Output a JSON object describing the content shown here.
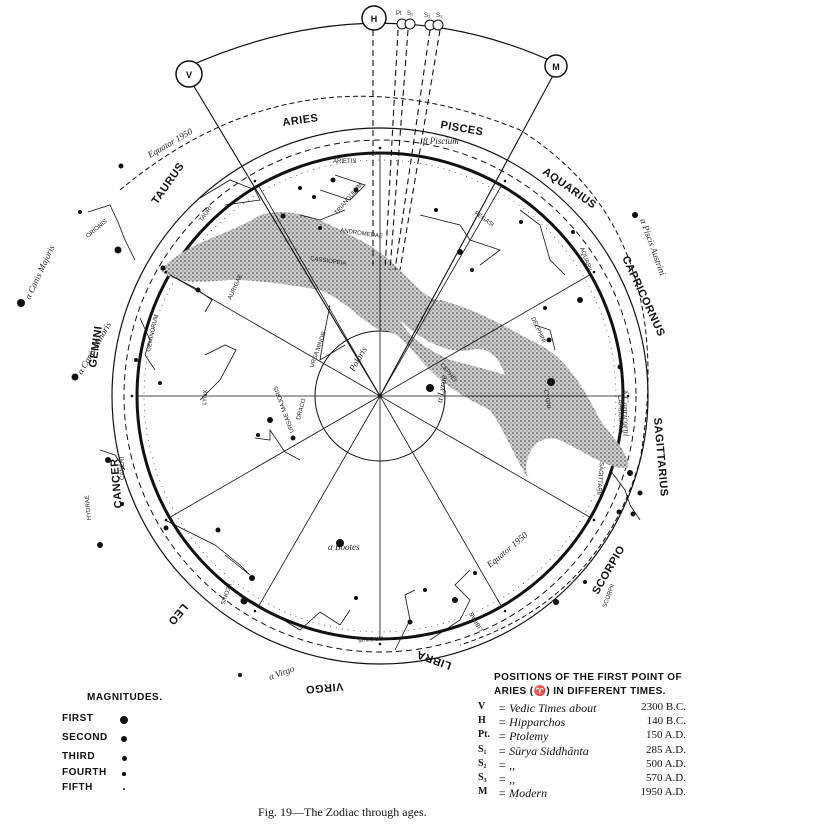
{
  "figure": {
    "caption": "Fig. 19—The Zodiac through ages."
  },
  "zodiac_signs": [
    "ARIES",
    "PISCES",
    "AQUARIUS",
    "CAPRICORNUS",
    "SAGITTARIUS",
    "SCORPIO",
    "LIBRA",
    "VIRGO",
    "LEO",
    "CANCER",
    "GEMINI",
    "TAURUS"
  ],
  "equator_labels": [
    "Equator 1950",
    "Equator 1950"
  ],
  "constellations": [
    "ARIETIS",
    "TRIANGULUM",
    "ANDROMEDAE",
    "PEGASI",
    "AQUARII",
    "DELPHINI",
    "CAPRICORNI",
    "SAGITTARII",
    "TAURI",
    "ORIONIS",
    "AURIGAE",
    "GEMINORUM",
    "LYNX",
    "CANCRI",
    "HYDRAE",
    "LEONIS",
    "URSAE MAJORIS",
    "URSA MINOR",
    "DRACO",
    "VIRGINIS",
    "LIBRAE",
    "SCORPII",
    "CASSIOPEIA",
    "CEPHEI",
    "CYGNI"
  ],
  "star_labels": [
    "Polaris",
    "β Piscium",
    "α Piscis Austrini",
    "α Canis Majoris",
    "α Canis Minoris",
    "α Bootes",
    "α Virgo",
    "δ Capricorni",
    "α Lyrae"
  ],
  "markers": [
    "V",
    "H",
    "Pt",
    "S₁",
    "S₂",
    "S₃",
    "M"
  ],
  "magnitudes": {
    "title": "MAGNITUDES.",
    "items": [
      {
        "label": "FIRST",
        "size": 8
      },
      {
        "label": "SECOND",
        "size": 6
      },
      {
        "label": "THIRD",
        "size": 5
      },
      {
        "label": "FOURTH",
        "size": 3.5
      },
      {
        "label": "FIFTH",
        "size": 2.5
      }
    ]
  },
  "positions": {
    "title_line1": "POSITIONS OF THE FIRST POINT OF",
    "title_line2": "ARIES (♈) IN DIFFERENT TIMES.",
    "rows": [
      {
        "symbol": "V",
        "name": "= Vedic Times about",
        "date": "2300 B.C."
      },
      {
        "symbol": "H",
        "name": "= Hipparchos",
        "date": "140 B.C."
      },
      {
        "symbol": "Pt.",
        "name": "= Ptolemy",
        "date": "150 A.D."
      },
      {
        "symbol": "S₁",
        "name": "= Sūrya Siddhānta",
        "date": "285 A.D."
      },
      {
        "symbol": "S₂",
        "name": "=       ,,",
        "date": "500 A.D."
      },
      {
        "symbol": "S₃",
        "name": "=       ,,",
        "date": "570 A.D."
      },
      {
        "symbol": "M",
        "name": "= Modern",
        "date": "1950 A.D."
      }
    ]
  }
}
